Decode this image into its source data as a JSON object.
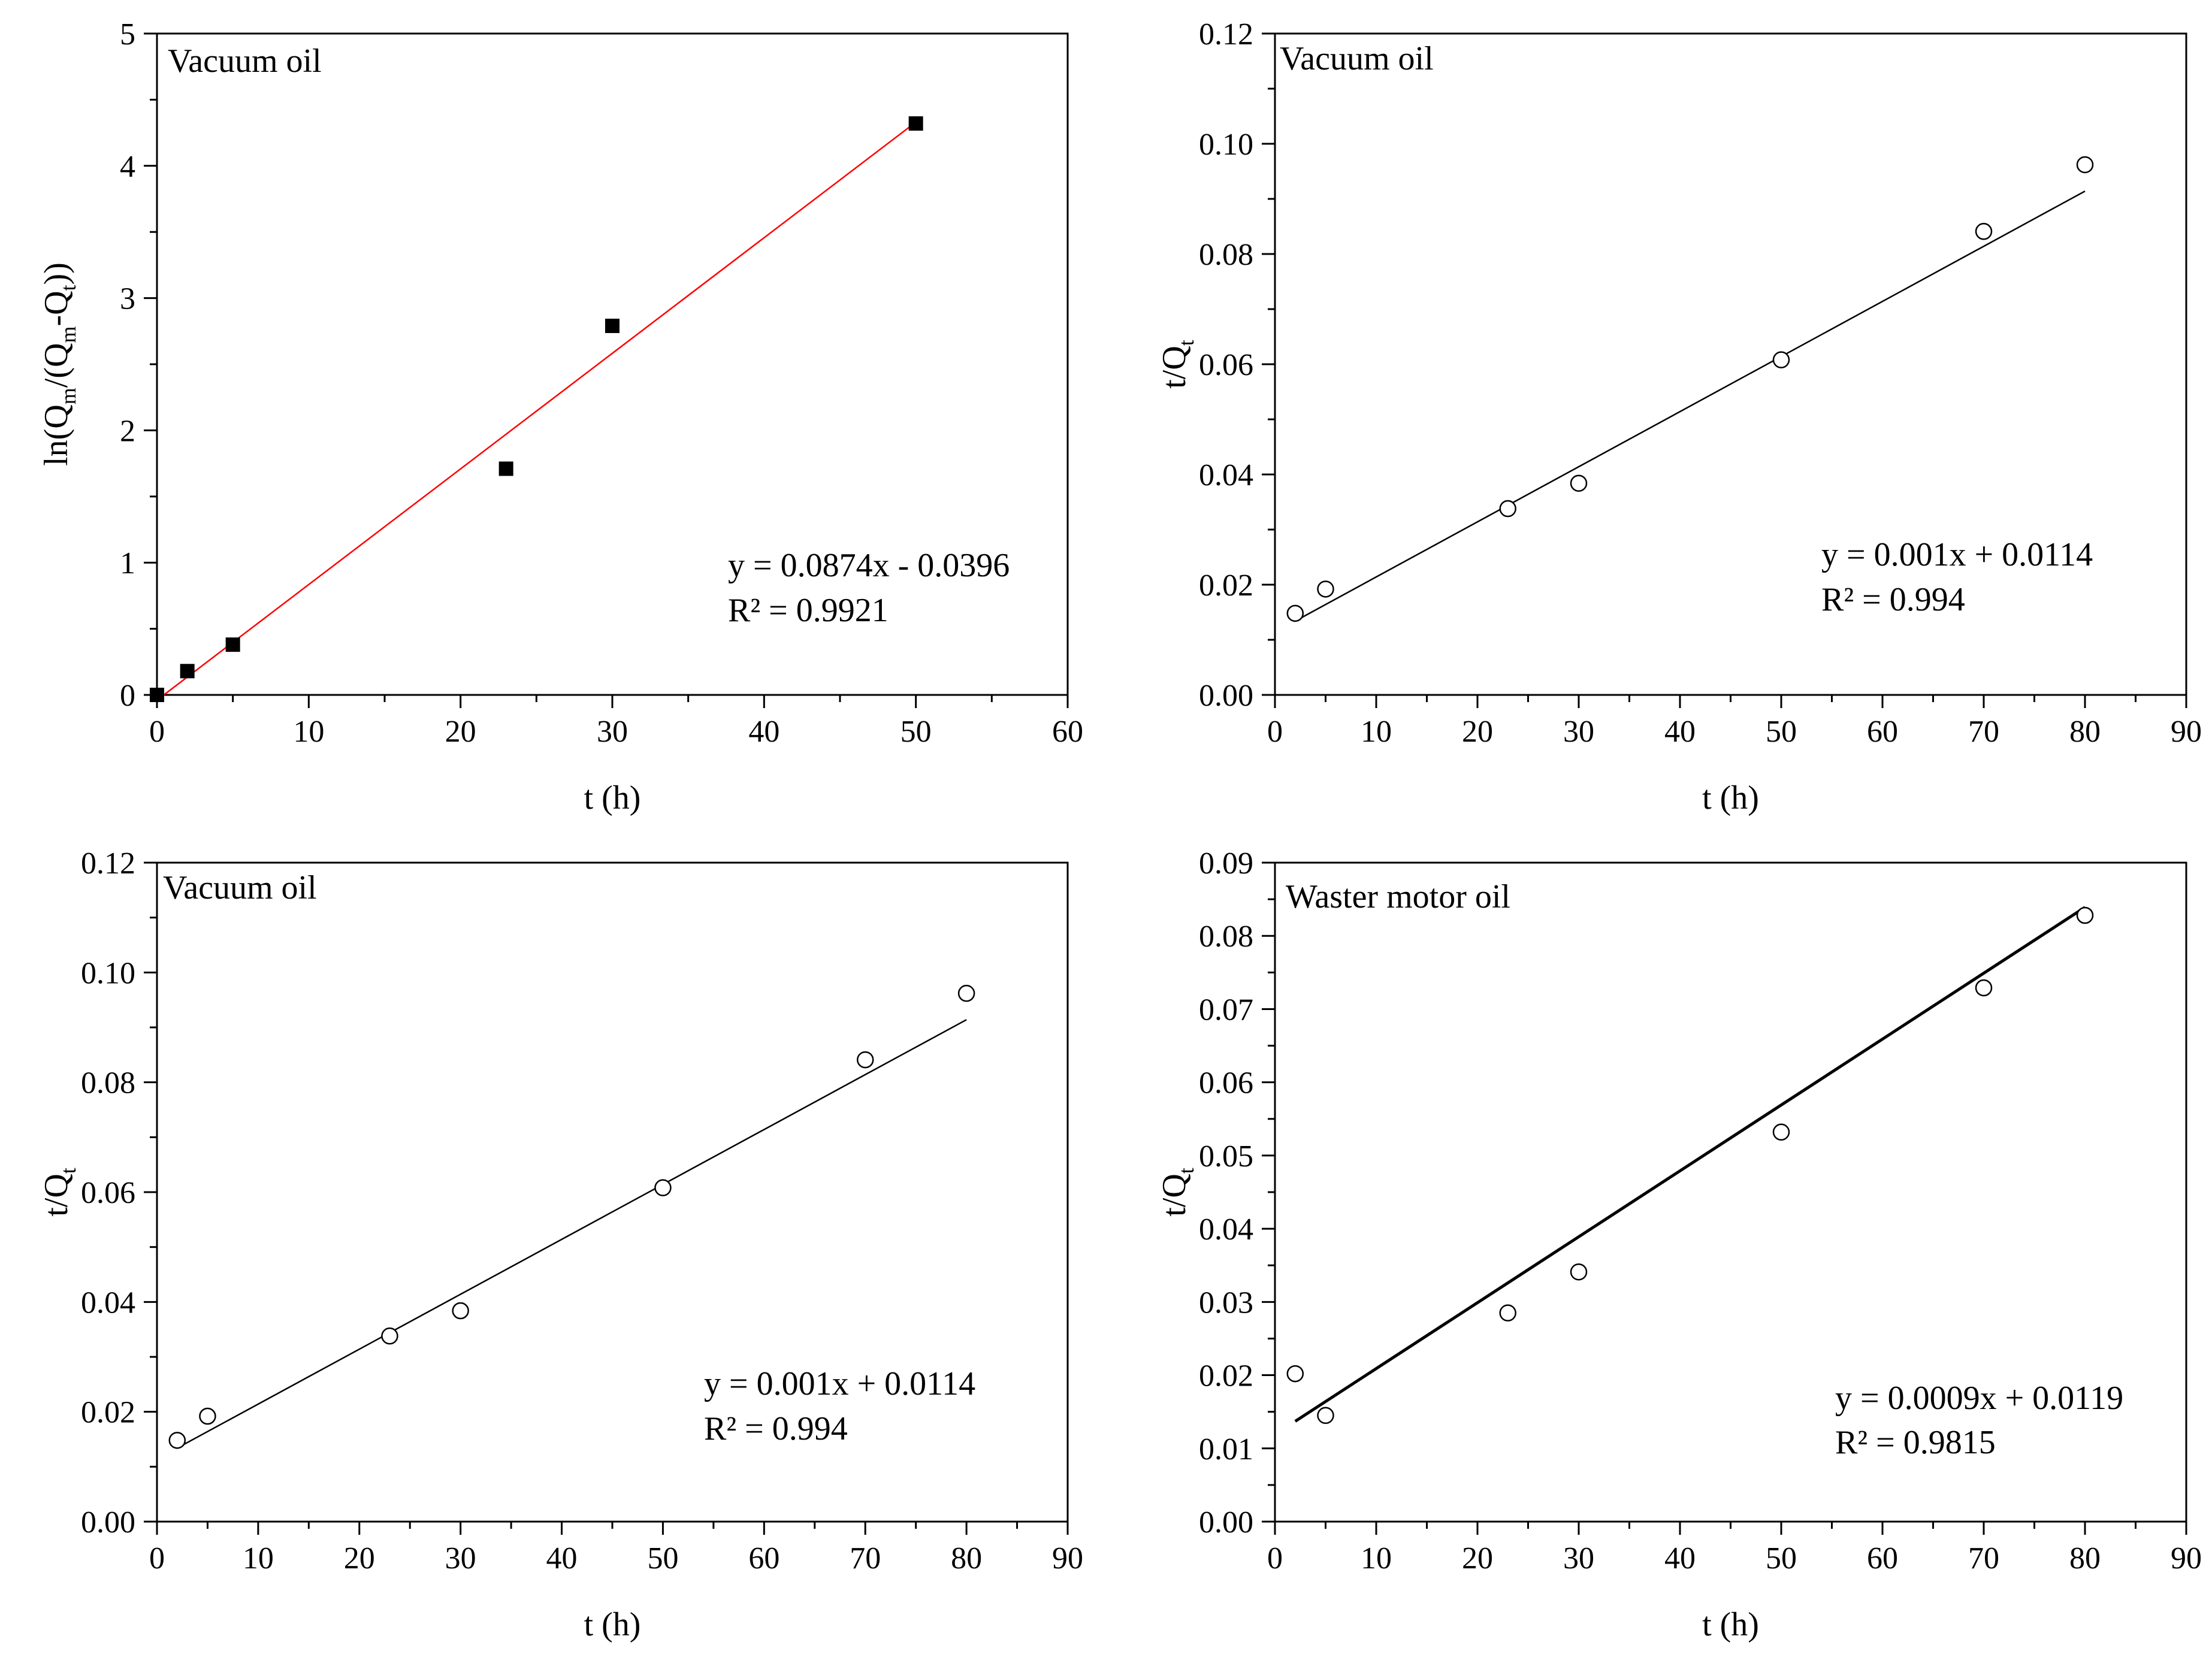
{
  "chart_data": [
    {
      "type": "scatter",
      "panel_label": "Vacuum oil",
      "xlabel": "t (h)",
      "ylabel": {
        "main": "ln(Q",
        "parts": [
          [
            "m",
            "sub"
          ],
          [
            "/(Q",
            ""
          ],
          [
            "m",
            "sub"
          ],
          [
            "-Q",
            ""
          ],
          [
            "t",
            "sub"
          ],
          [
            "))",
            ""
          ]
        ]
      },
      "ylabel_text": "ln(Qm/(Qm-Qt))",
      "xlim": [
        0,
        60
      ],
      "ylim": [
        0,
        5
      ],
      "xticks": [
        0,
        10,
        20,
        30,
        40,
        50,
        60
      ],
      "yticks": [
        0,
        1,
        2,
        3,
        4,
        5
      ],
      "ytick_labels": [
        "0",
        "1",
        "2",
        "3",
        "4",
        "5"
      ],
      "marker": "filled-square",
      "fit_color": "#ff0000",
      "series": [
        {
          "name": "Vacuum oil",
          "x": [
            0,
            2,
            5,
            23,
            30,
            50
          ],
          "y": [
            0,
            0.18,
            0.38,
            1.71,
            2.79,
            4.32
          ]
        }
      ],
      "fit": {
        "slope": 0.0874,
        "intercept": -0.0396,
        "x_range": [
          0,
          50
        ]
      },
      "equation": "y = 0.0874x - 0.0396",
      "r2": "R² = 0.9921"
    },
    {
      "type": "scatter",
      "panel_label": "Vacuum oil",
      "xlabel": "t (h)",
      "ylabel_text": "t/Qt",
      "xlim": [
        0,
        90
      ],
      "ylim": [
        0,
        0.12
      ],
      "xticks": [
        0,
        10,
        20,
        30,
        40,
        50,
        60,
        70,
        80,
        90
      ],
      "yticks": [
        0,
        0.02,
        0.04,
        0.06,
        0.08,
        0.1,
        0.12
      ],
      "ytick_labels": [
        "0.00",
        "0.02",
        "0.04",
        "0.06",
        "0.08",
        "0.10",
        "0.12"
      ],
      "marker": "open-circle",
      "fit_color": "#000000",
      "series": [
        {
          "name": "Vacuum oil",
          "x": [
            2,
            5,
            23,
            30,
            50,
            70,
            80
          ],
          "y": [
            0.0148,
            0.0192,
            0.0338,
            0.0384,
            0.0608,
            0.0841,
            0.0962
          ]
        }
      ],
      "fit": {
        "slope": 0.001,
        "intercept": 0.0114,
        "x_range": [
          2,
          80
        ]
      },
      "equation": "y = 0.001x + 0.0114",
      "r2": "R² = 0.994"
    },
    {
      "type": "scatter",
      "panel_label": "Vacuum oil",
      "xlabel": "t (h)",
      "ylabel_text": "t/Qt",
      "xlim": [
        0,
        90
      ],
      "ylim": [
        0,
        0.12
      ],
      "xticks": [
        0,
        10,
        20,
        30,
        40,
        50,
        60,
        70,
        80,
        90
      ],
      "yticks": [
        0,
        0.02,
        0.04,
        0.06,
        0.08,
        0.1,
        0.12
      ],
      "ytick_labels": [
        "0.00",
        "0.02",
        "0.04",
        "0.06",
        "0.08",
        "0.10",
        "0.12"
      ],
      "marker": "open-circle",
      "fit_color": "#000000",
      "series": [
        {
          "name": "Vacuum oil",
          "x": [
            2,
            5,
            23,
            30,
            50,
            70,
            80
          ],
          "y": [
            0.0148,
            0.0192,
            0.0338,
            0.0384,
            0.0608,
            0.0841,
            0.0962
          ]
        }
      ],
      "fit": {
        "slope": 0.001,
        "intercept": 0.0114,
        "x_range": [
          2,
          80
        ]
      },
      "equation": "y = 0.001x + 0.0114",
      "r2": "R² = 0.994"
    },
    {
      "type": "scatter",
      "panel_label": "Waster motor oil",
      "xlabel": "t (h)",
      "ylabel_text": "t/Qt",
      "xlim": [
        0,
        90
      ],
      "ylim": [
        0,
        0.09
      ],
      "xticks": [
        0,
        10,
        20,
        30,
        40,
        50,
        60,
        70,
        80,
        90
      ],
      "yticks": [
        0,
        0.01,
        0.02,
        0.03,
        0.04,
        0.05,
        0.06,
        0.07,
        0.08,
        0.09
      ],
      "ytick_labels": [
        "0.00",
        "0.01",
        "0.02",
        "0.03",
        "0.04",
        "0.05",
        "0.06",
        "0.07",
        "0.08",
        "0.09"
      ],
      "marker": "open-circle",
      "fit_color": "#000000",
      "series": [
        {
          "name": "Waster motor oil",
          "x": [
            2,
            5,
            23,
            30,
            50,
            70,
            80
          ],
          "y": [
            0.0202,
            0.0145,
            0.0285,
            0.0341,
            0.0532,
            0.0729,
            0.0828
          ]
        }
      ],
      "fit": {
        "slope": 0.0009,
        "intercept": 0.0119,
        "x_range": [
          2,
          80
        ]
      },
      "equation": "y = 0.0009x + 0.0119",
      "r2": "R² = 0.9815"
    }
  ]
}
